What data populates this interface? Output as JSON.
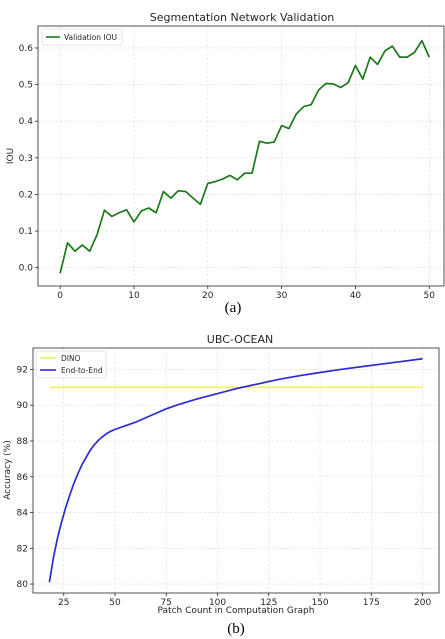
{
  "chart_data": [
    {
      "type": "line",
      "title": "Segmentation Network Validation",
      "xlabel": "",
      "ylabel": "IOU",
      "caption": "(a)",
      "xlim": [
        -3,
        52
      ],
      "ylim": [
        -0.05,
        0.66
      ],
      "xticks": [
        0,
        10,
        20,
        30,
        40,
        50
      ],
      "yticks": [
        0.0,
        0.1,
        0.2,
        0.3,
        0.4,
        0.5,
        0.6
      ],
      "ytick_labels": [
        "0.0",
        "0.1",
        "0.2",
        "0.3",
        "0.4",
        "0.5",
        "0.6"
      ],
      "grid": true,
      "legend": "top-left",
      "series": [
        {
          "name": "Validation IOU",
          "color": "#1a7a1a",
          "x": [
            0,
            1,
            2,
            3,
            4,
            5,
            6,
            7,
            8,
            9,
            10,
            11,
            12,
            13,
            14,
            15,
            16,
            17,
            18,
            19,
            20,
            21,
            22,
            23,
            24,
            25,
            26,
            27,
            28,
            29,
            30,
            31,
            32,
            33,
            34,
            35,
            36,
            37,
            38,
            39,
            40,
            41,
            42,
            43,
            44,
            45,
            46,
            47,
            48,
            49,
            50
          ],
          "y": [
            -0.015,
            0.068,
            0.045,
            0.062,
            0.045,
            0.09,
            0.157,
            0.14,
            0.15,
            0.158,
            0.125,
            0.155,
            0.163,
            0.15,
            0.208,
            0.19,
            0.21,
            0.208,
            0.19,
            0.173,
            0.23,
            0.235,
            0.242,
            0.252,
            0.24,
            0.258,
            0.258,
            0.345,
            0.34,
            0.343,
            0.388,
            0.38,
            0.42,
            0.44,
            0.445,
            0.485,
            0.503,
            0.502,
            0.492,
            0.505,
            0.552,
            0.515,
            0.575,
            0.555,
            0.592,
            0.605,
            0.575,
            0.575,
            0.588,
            0.62,
            0.575
          ]
        }
      ]
    },
    {
      "type": "line",
      "title": "UBC-OCEAN",
      "xlabel": "Patch Count in Computation Graph",
      "ylabel": "Accuracy (%)",
      "caption": "(b)",
      "xlim": [
        10,
        208
      ],
      "ylim": [
        79.5,
        93.2
      ],
      "xticks": [
        25,
        50,
        75,
        100,
        125,
        150,
        175,
        200
      ],
      "yticks": [
        80,
        82,
        84,
        86,
        88,
        90,
        92
      ],
      "ytick_labels": [
        "80",
        "82",
        "84",
        "86",
        "88",
        "90",
        "92"
      ],
      "grid": true,
      "legend": "top-left",
      "series": [
        {
          "name": "DINO",
          "color": "#f2f25a",
          "x": [
            18,
            200
          ],
          "y": [
            91.0,
            91.0
          ]
        },
        {
          "name": "End-to-End",
          "color": "#2b2bd6",
          "x": [
            18,
            20,
            22,
            24,
            26,
            28,
            30,
            32,
            34,
            36,
            38,
            40,
            42,
            44,
            46,
            48,
            50,
            55,
            60,
            65,
            70,
            75,
            80,
            90,
            100,
            110,
            120,
            130,
            140,
            150,
            160,
            170,
            180,
            190,
            200
          ],
          "y": [
            80.1,
            81.5,
            82.6,
            83.5,
            84.3,
            85.0,
            85.65,
            86.2,
            86.7,
            87.1,
            87.5,
            87.8,
            88.05,
            88.25,
            88.42,
            88.55,
            88.65,
            88.85,
            89.05,
            89.3,
            89.55,
            89.8,
            90.0,
            90.35,
            90.65,
            90.95,
            91.2,
            91.45,
            91.65,
            91.83,
            92.0,
            92.15,
            92.3,
            92.45,
            92.6
          ]
        }
      ]
    }
  ]
}
